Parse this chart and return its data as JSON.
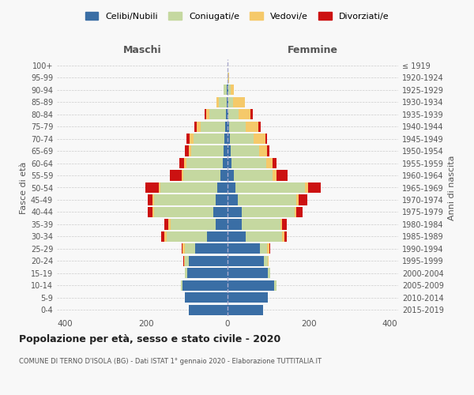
{
  "age_groups": [
    "0-4",
    "5-9",
    "10-14",
    "15-19",
    "20-24",
    "25-29",
    "30-34",
    "35-39",
    "40-44",
    "45-49",
    "50-54",
    "55-59",
    "60-64",
    "65-69",
    "70-74",
    "75-79",
    "80-84",
    "85-89",
    "90-94",
    "95-99",
    "100+"
  ],
  "birth_years": [
    "2015-2019",
    "2010-2014",
    "2005-2009",
    "2000-2004",
    "1995-1999",
    "1990-1994",
    "1985-1989",
    "1980-1984",
    "1975-1979",
    "1970-1974",
    "1965-1969",
    "1960-1964",
    "1955-1959",
    "1950-1954",
    "1945-1949",
    "1940-1944",
    "1935-1939",
    "1930-1934",
    "1925-1929",
    "1920-1924",
    "≤ 1919"
  ],
  "colors": {
    "celibi": "#3a6ea5",
    "coniugati": "#c5d8a0",
    "vedovi": "#f5c96a",
    "divorziati": "#cc1111"
  },
  "males": {
    "celibi": [
      95,
      105,
      110,
      100,
      95,
      80,
      50,
      30,
      35,
      30,
      25,
      18,
      12,
      10,
      8,
      6,
      4,
      2,
      2,
      0,
      0
    ],
    "coniugati": [
      0,
      0,
      5,
      5,
      10,
      25,
      100,
      110,
      145,
      150,
      140,
      90,
      90,
      80,
      75,
      60,
      40,
      20,
      8,
      0,
      0
    ],
    "vedovi": [
      0,
      0,
      0,
      0,
      2,
      5,
      5,
      5,
      5,
      5,
      5,
      5,
      5,
      5,
      10,
      10,
      8,
      5,
      0,
      0,
      0
    ],
    "divorziati": [
      0,
      0,
      0,
      0,
      2,
      2,
      8,
      10,
      12,
      12,
      32,
      28,
      12,
      10,
      8,
      5,
      5,
      0,
      0,
      0,
      0
    ]
  },
  "females": {
    "nubili": [
      88,
      100,
      115,
      100,
      90,
      80,
      45,
      35,
      35,
      25,
      20,
      15,
      10,
      8,
      5,
      4,
      2,
      2,
      2,
      0,
      0
    ],
    "coniugate": [
      0,
      0,
      5,
      5,
      10,
      18,
      90,
      95,
      130,
      145,
      170,
      95,
      85,
      70,
      60,
      40,
      25,
      12,
      5,
      2,
      0
    ],
    "vedove": [
      0,
      0,
      0,
      0,
      2,
      5,
      5,
      5,
      5,
      5,
      8,
      10,
      15,
      20,
      28,
      32,
      30,
      28,
      8,
      2,
      0
    ],
    "divorziate": [
      0,
      0,
      0,
      0,
      0,
      2,
      5,
      10,
      15,
      22,
      32,
      28,
      10,
      5,
      5,
      5,
      5,
      0,
      0,
      0,
      0
    ]
  },
  "xlim": 420,
  "title": "Popolazione per età, sesso e stato civile - 2020",
  "subtitle": "COMUNE DI TERNO D'ISOLA (BG) - Dati ISTAT 1° gennaio 2020 - Elaborazione TUTTITALIA.IT",
  "ylabel_left": "Fasce di età",
  "ylabel_right": "Anni di nascita",
  "xlabel_left": "Maschi",
  "xlabel_right": "Femmine",
  "legend_labels": [
    "Celibi/Nubili",
    "Coniugati/e",
    "Vedovi/e",
    "Divorziati/e"
  ],
  "bg_color": "#f8f8f8"
}
